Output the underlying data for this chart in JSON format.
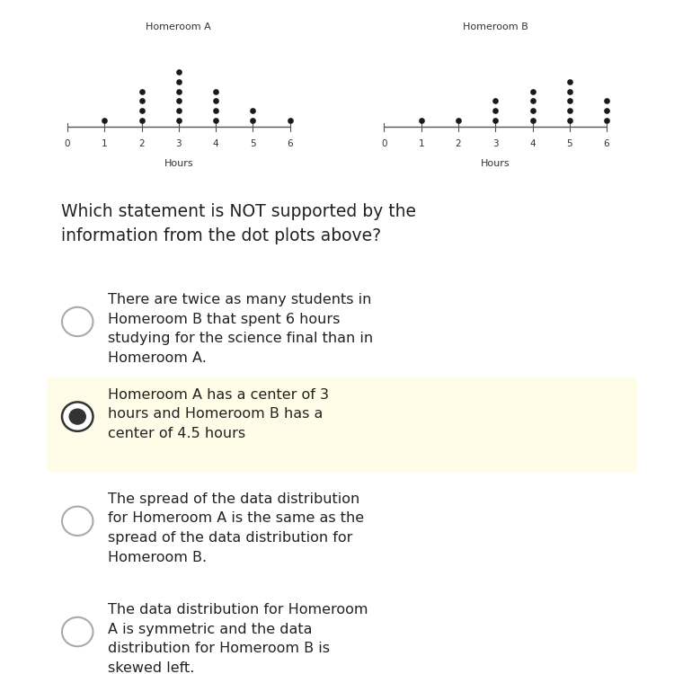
{
  "homeroom_a": {
    "title": "Homeroom A",
    "data": {
      "1": 1,
      "2": 4,
      "3": 6,
      "4": 4,
      "5": 2,
      "6": 1
    },
    "xlabel": "Hours"
  },
  "homeroom_b": {
    "title": "Homeroom B",
    "data": {
      "1": 1,
      "2": 1,
      "3": 3,
      "4": 4,
      "5": 5,
      "6": 3
    },
    "xlabel": "Hours"
  },
  "question": "Which statement is NOT supported by the\ninformation from the dot plots above?",
  "options": [
    {
      "text": "There are twice as many students in\nHomeroom B that spent 6 hours\nstudying for the science final than in\nHomeroom A.",
      "selected": false,
      "highlighted": false
    },
    {
      "text": "Homeroom A has a center of 3\nhours and Homeroom B has a\ncenter of 4.5 hours",
      "selected": true,
      "highlighted": true
    },
    {
      "text": "The spread of the data distribution\nfor Homeroom A is the same as the\nspread of the data distribution for\nHomeroom B.",
      "selected": false,
      "highlighted": false
    },
    {
      "text": "The data distribution for Homeroom\nA is symmetric and the data\ndistribution for Homeroom B is\nskewed left.",
      "selected": false,
      "highlighted": false
    }
  ],
  "bg_color": "#ffffff",
  "highlight_color": "#fffde7",
  "dot_color": "#1a1a1a",
  "header_color": "#2c4a7c",
  "radio_unsel_color": "#aaaaaa",
  "radio_sel_color": "#333333",
  "text_color": "#222222"
}
